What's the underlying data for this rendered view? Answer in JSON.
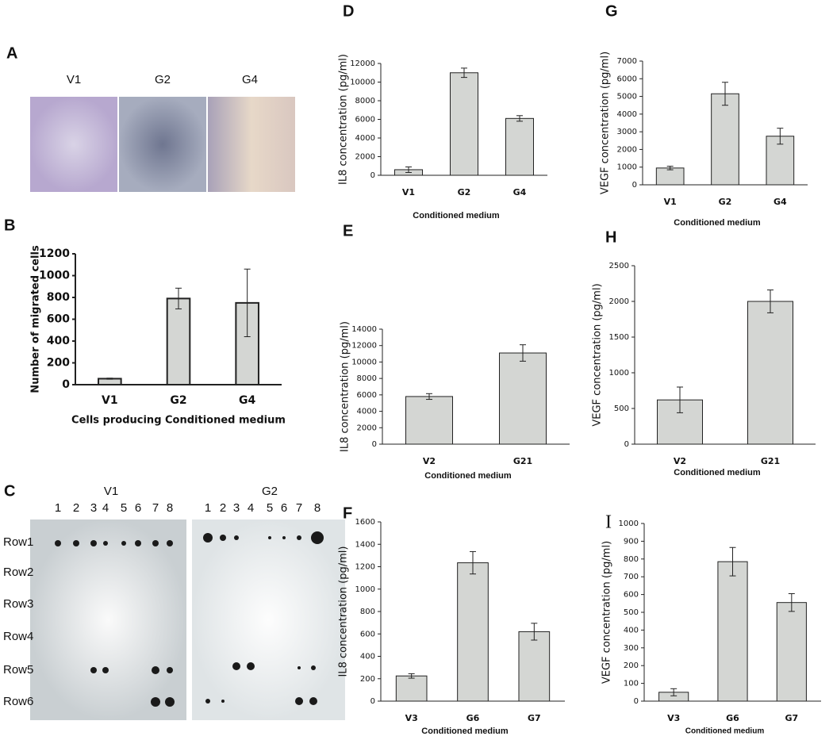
{
  "panel_letters": [
    "A",
    "B",
    "C",
    "D",
    "E",
    "F",
    "G",
    "H",
    "I"
  ],
  "migration_images": {
    "labels": [
      "V1",
      "G2",
      "G4"
    ]
  },
  "dot_blot": {
    "titles": [
      "V1",
      "G2"
    ],
    "columns": [
      "1",
      "2",
      "3",
      "4",
      "5",
      "6",
      "7",
      "8"
    ],
    "rows": [
      "Row1",
      "Row2",
      "Row3",
      "Row4",
      "Row5",
      "Row6"
    ]
  },
  "chart_data": [
    {
      "type": "bar",
      "y_label": "Number of migrated cells",
      "x_label": "Cells producing Conditioned medium",
      "categories": [
        "V1",
        "G2",
        "G4"
      ],
      "series": [
        {
          "color": "#d4d6d3",
          "values": [
            55,
            790,
            750
          ],
          "errors": [
            5,
            95,
            310
          ]
        }
      ],
      "ylim": [
        0,
        1200
      ],
      "yticks": [
        0,
        200,
        400,
        600,
        800,
        1000,
        1200
      ],
      "grid": false
    },
    {
      "type": "bar",
      "y_label": "IL8 concentration (pg/ml)",
      "x_label": "Conditioned medium",
      "categories": [
        "V1",
        "G2",
        "G4"
      ],
      "series": [
        {
          "color": "#d4d6d3",
          "values": [
            600,
            11000,
            6100
          ],
          "errors": [
            300,
            500,
            300
          ]
        }
      ],
      "ylim": [
        0,
        12000
      ],
      "yticks": [
        0,
        2000,
        4000,
        6000,
        8000,
        10000,
        12000
      ],
      "grid": false
    },
    {
      "type": "bar",
      "y_label": "IL8 concentration (pg/ml)",
      "x_label": "Conditioned medium",
      "categories": [
        "V2",
        "G21"
      ],
      "series": [
        {
          "color": "#d4d6d3",
          "values": [
            5800,
            11100
          ],
          "errors": [
            350,
            1000
          ]
        }
      ],
      "ylim": [
        0,
        14000
      ],
      "yticks": [
        0,
        2000,
        4000,
        6000,
        8000,
        10000,
        12000,
        14000
      ],
      "grid": false
    },
    {
      "type": "bar",
      "y_label": "IL8 concentration (pg/ml)",
      "x_label": "Conditioned medium",
      "categories": [
        "V3",
        "G6",
        "G7"
      ],
      "series": [
        {
          "color": "#d4d6d3",
          "values": [
            225,
            1235,
            620
          ],
          "errors": [
            20,
            100,
            75
          ]
        }
      ],
      "ylim": [
        0,
        1600
      ],
      "yticks": [
        0,
        200,
        400,
        600,
        800,
        1000,
        1200,
        1400,
        1600
      ],
      "grid": false
    },
    {
      "type": "bar",
      "y_label": "VEGF concentration (pg/ml)",
      "x_label": "Conditioned medium",
      "categories": [
        "V1",
        "G2",
        "G4"
      ],
      "series": [
        {
          "color": "#d4d6d3",
          "values": [
            950,
            5150,
            2750
          ],
          "errors": [
            100,
            650,
            450
          ]
        }
      ],
      "ylim": [
        0,
        7000
      ],
      "yticks": [
        0,
        1000,
        2000,
        3000,
        4000,
        5000,
        6000,
        7000
      ],
      "grid": false
    },
    {
      "type": "bar",
      "y_label": "VEGF concentration (pg/ml)",
      "x_label": "Conditioned medium",
      "categories": [
        "V2",
        "G21"
      ],
      "series": [
        {
          "color": "#d4d6d3",
          "values": [
            620,
            2000
          ],
          "errors": [
            180,
            160
          ]
        }
      ],
      "ylim": [
        0,
        2500
      ],
      "yticks": [
        0,
        500,
        1000,
        1500,
        2000,
        2500
      ],
      "grid": false
    },
    {
      "type": "bar",
      "y_label": "VEGF concentration (pg/ml)",
      "x_label": "Conditioned medium",
      "categories": [
        "V3",
        "G6",
        "G7"
      ],
      "series": [
        {
          "color": "#d4d6d3",
          "values": [
            50,
            785,
            555
          ],
          "errors": [
            20,
            80,
            50
          ]
        }
      ],
      "ylim": [
        0,
        1000
      ],
      "yticks": [
        0,
        100,
        200,
        300,
        400,
        500,
        600,
        700,
        800,
        900,
        1000
      ],
      "grid": false
    }
  ]
}
